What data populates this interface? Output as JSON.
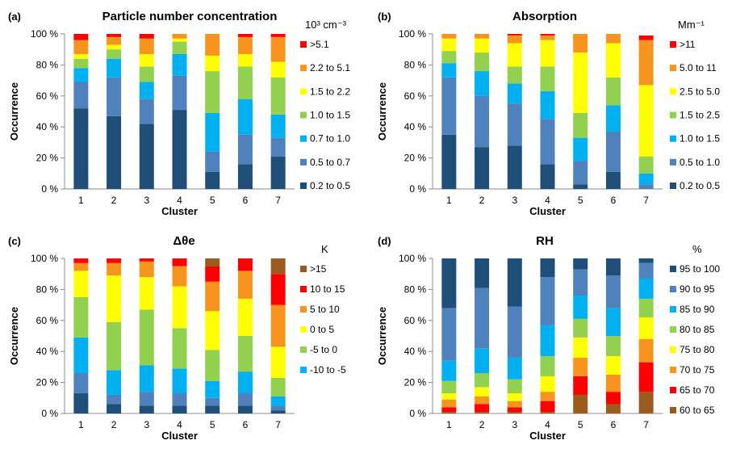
{
  "chart_data": [
    {
      "type": "bar",
      "stacked": true,
      "panel_label": "(a)",
      "title": "Particle number concentration",
      "unit": "10³ cm⁻³",
      "xlabel": "Cluster",
      "ylabel": "Occurrence",
      "categories": [
        "1",
        "2",
        "3",
        "4",
        "5",
        "6",
        "7"
      ],
      "y_ticks": [
        "0 %",
        "20 %",
        "40 %",
        "60 %",
        "80 %",
        "100 %"
      ],
      "ylim": [
        0,
        100
      ],
      "legend_placement": "right",
      "series": [
        {
          "name": "0.2 to 0.5",
          "color": "#1F4E79",
          "values": [
            52,
            47,
            42,
            51,
            11,
            16,
            21
          ]
        },
        {
          "name": "0.5 to 0.7",
          "color": "#4F81BD",
          "values": [
            17,
            25,
            16,
            22,
            13,
            19,
            12
          ]
        },
        {
          "name": "0.7 to 1.0",
          "color": "#00B0F0",
          "values": [
            9,
            12,
            11,
            14,
            25,
            23,
            15
          ]
        },
        {
          "name": "1.0 to 1.5",
          "color": "#92D050",
          "values": [
            6,
            6,
            10,
            8,
            27,
            21,
            24
          ]
        },
        {
          "name": "1.5 to 2.2",
          "color": "#FFFF00",
          "values": [
            3,
            3,
            8,
            2,
            10,
            8,
            10
          ]
        },
        {
          "name": "2.2 to 5.1",
          "color": "#F7941D",
          "values": [
            9,
            5,
            10,
            3,
            14,
            11,
            16
          ]
        },
        {
          "name": ">5.1",
          "color": "#FF0000",
          "values": [
            4,
            2,
            3,
            0,
            0,
            2,
            2
          ]
        }
      ]
    },
    {
      "type": "bar",
      "stacked": true,
      "panel_label": "(b)",
      "title": "Absorption",
      "unit": "Mm⁻¹",
      "xlabel": "Cluster",
      "ylabel": "Occurrence",
      "categories": [
        "1",
        "2",
        "3",
        "4",
        "5",
        "6",
        "7"
      ],
      "y_ticks": [
        "0 %",
        "20 %",
        "40 %",
        "60 %",
        "80 %",
        "100 %"
      ],
      "ylim": [
        0,
        100
      ],
      "legend_placement": "right",
      "series": [
        {
          "name": "0.2 to 0.5",
          "color": "#1F4E79",
          "values": [
            35,
            27,
            28,
            16,
            3,
            11,
            0
          ]
        },
        {
          "name": "0.5 to 1.0",
          "color": "#4F81BD",
          "values": [
            37,
            33,
            27,
            29,
            15,
            26,
            3
          ]
        },
        {
          "name": "1.0 to 1.5",
          "color": "#00B0F0",
          "values": [
            9,
            16,
            13,
            18,
            15,
            17,
            7
          ]
        },
        {
          "name": "1.5 to 2.5",
          "color": "#92D050",
          "values": [
            8,
            12,
            11,
            16,
            16,
            18,
            11
          ]
        },
        {
          "name": "2.5 to 5.0",
          "color": "#FFFF00",
          "values": [
            8,
            9,
            15,
            17,
            39,
            22,
            46
          ]
        },
        {
          "name": "5.0 to 11",
          "color": "#F7941D",
          "values": [
            3,
            3,
            5,
            3,
            12,
            6,
            29
          ]
        },
        {
          "name": ">11",
          "color": "#FF0000",
          "values": [
            0,
            0,
            1,
            1,
            0,
            0,
            3
          ]
        }
      ]
    },
    {
      "type": "bar",
      "stacked": true,
      "panel_label": "(c)",
      "title": "Δθe",
      "unit": "K",
      "xlabel": "Cluster",
      "ylabel": "Occurrence",
      "categories": [
        "1",
        "2",
        "3",
        "4",
        "5",
        "6",
        "7"
      ],
      "y_ticks": [
        "0 %",
        "20 %",
        "40 %",
        "60 %",
        "80 %",
        "100 %"
      ],
      "ylim": [
        0,
        100
      ],
      "legend_placement": "right",
      "series": [
        {
          "name": "",
          "color": "#1F4E79",
          "values": [
            13,
            6,
            5,
            5,
            5,
            5,
            2
          ]
        },
        {
          "name": "",
          "color": "#4F81BD",
          "values": [
            13,
            6,
            9,
            8,
            5,
            8,
            3
          ]
        },
        {
          "name": "-10 to -5",
          "color": "#00B0F0",
          "values": [
            23,
            16,
            17,
            16,
            11,
            14,
            6
          ]
        },
        {
          "name": "-5 to 0",
          "color": "#92D050",
          "values": [
            26,
            31,
            36,
            26,
            20,
            23,
            12
          ]
        },
        {
          "name": "0 to 5",
          "color": "#FFFF00",
          "values": [
            17,
            30,
            21,
            27,
            25,
            24,
            20
          ]
        },
        {
          "name": "5 to 10",
          "color": "#F7941D",
          "values": [
            5,
            8,
            10,
            13,
            19,
            18,
            27
          ]
        },
        {
          "name": "10 to 15",
          "color": "#FF0000",
          "values": [
            3,
            3,
            2,
            5,
            10,
            8,
            20
          ]
        },
        {
          "name": ">15",
          "color": "#9C5B1E",
          "values": [
            0,
            0,
            0,
            0,
            5,
            0,
            10
          ]
        }
      ]
    },
    {
      "type": "bar",
      "stacked": true,
      "panel_label": "(d)",
      "title": "RH",
      "unit": "%",
      "xlabel": "Cluster",
      "ylabel": "Occurrence",
      "categories": [
        "1",
        "2",
        "3",
        "4",
        "5",
        "6",
        "7"
      ],
      "y_ticks": [
        "0 %",
        "20 %",
        "40 %",
        "60 %",
        "80 %",
        "100 %"
      ],
      "ylim": [
        0,
        100
      ],
      "legend_placement": "right",
      "series": [
        {
          "name": "60 to 65",
          "color": "#9C5B1E",
          "values": [
            1,
            1,
            1,
            1,
            12,
            6,
            14
          ]
        },
        {
          "name": "65 to 70",
          "color": "#FF0000",
          "values": [
            3,
            5,
            3,
            7,
            12,
            8,
            19
          ]
        },
        {
          "name": "70 to 75",
          "color": "#F7941D",
          "values": [
            5,
            5,
            4,
            6,
            12,
            11,
            15
          ]
        },
        {
          "name": "75 to 80",
          "color": "#FFFF00",
          "values": [
            4,
            6,
            5,
            10,
            13,
            12,
            14
          ]
        },
        {
          "name": "80 to 85",
          "color": "#92D050",
          "values": [
            8,
            9,
            9,
            13,
            12,
            13,
            12
          ]
        },
        {
          "name": "85 to 90",
          "color": "#00B0F0",
          "values": [
            13,
            16,
            14,
            20,
            15,
            18,
            13
          ]
        },
        {
          "name": "90 to 95",
          "color": "#4F81BD",
          "values": [
            34,
            39,
            33,
            31,
            17,
            21,
            10
          ]
        },
        {
          "name": "95 to 100",
          "color": "#1F4E79",
          "values": [
            32,
            19,
            31,
            12,
            7,
            11,
            3
          ]
        }
      ]
    }
  ]
}
